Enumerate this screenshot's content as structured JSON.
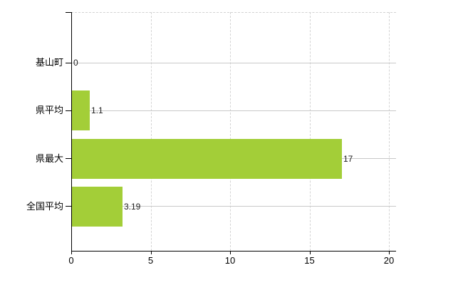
{
  "chart_data": {
    "type": "bar",
    "orientation": "horizontal",
    "title": "",
    "xlabel": "",
    "ylabel": "",
    "categories": [
      "基山町",
      "県平均",
      "県最大",
      "全国平均"
    ],
    "values": [
      0,
      1.1,
      17,
      3.19
    ],
    "value_labels": [
      "0",
      "1.1",
      "17",
      "3.19"
    ],
    "xlim": [
      0,
      20
    ],
    "x_ticks": [
      0,
      5,
      10,
      15,
      20
    ],
    "x_tick_labels": [
      "0",
      "5",
      "10",
      "15",
      "20"
    ],
    "grid": "vertical-dashed",
    "legend": null,
    "bar_color": "#a3ce38"
  },
  "colors": {
    "background": "#ffffff",
    "axis": "#000000",
    "gridline": "#d4d4d4",
    "row_leader_line": "#c8c8c8",
    "bar": "#a3ce38",
    "text": "#000000"
  }
}
